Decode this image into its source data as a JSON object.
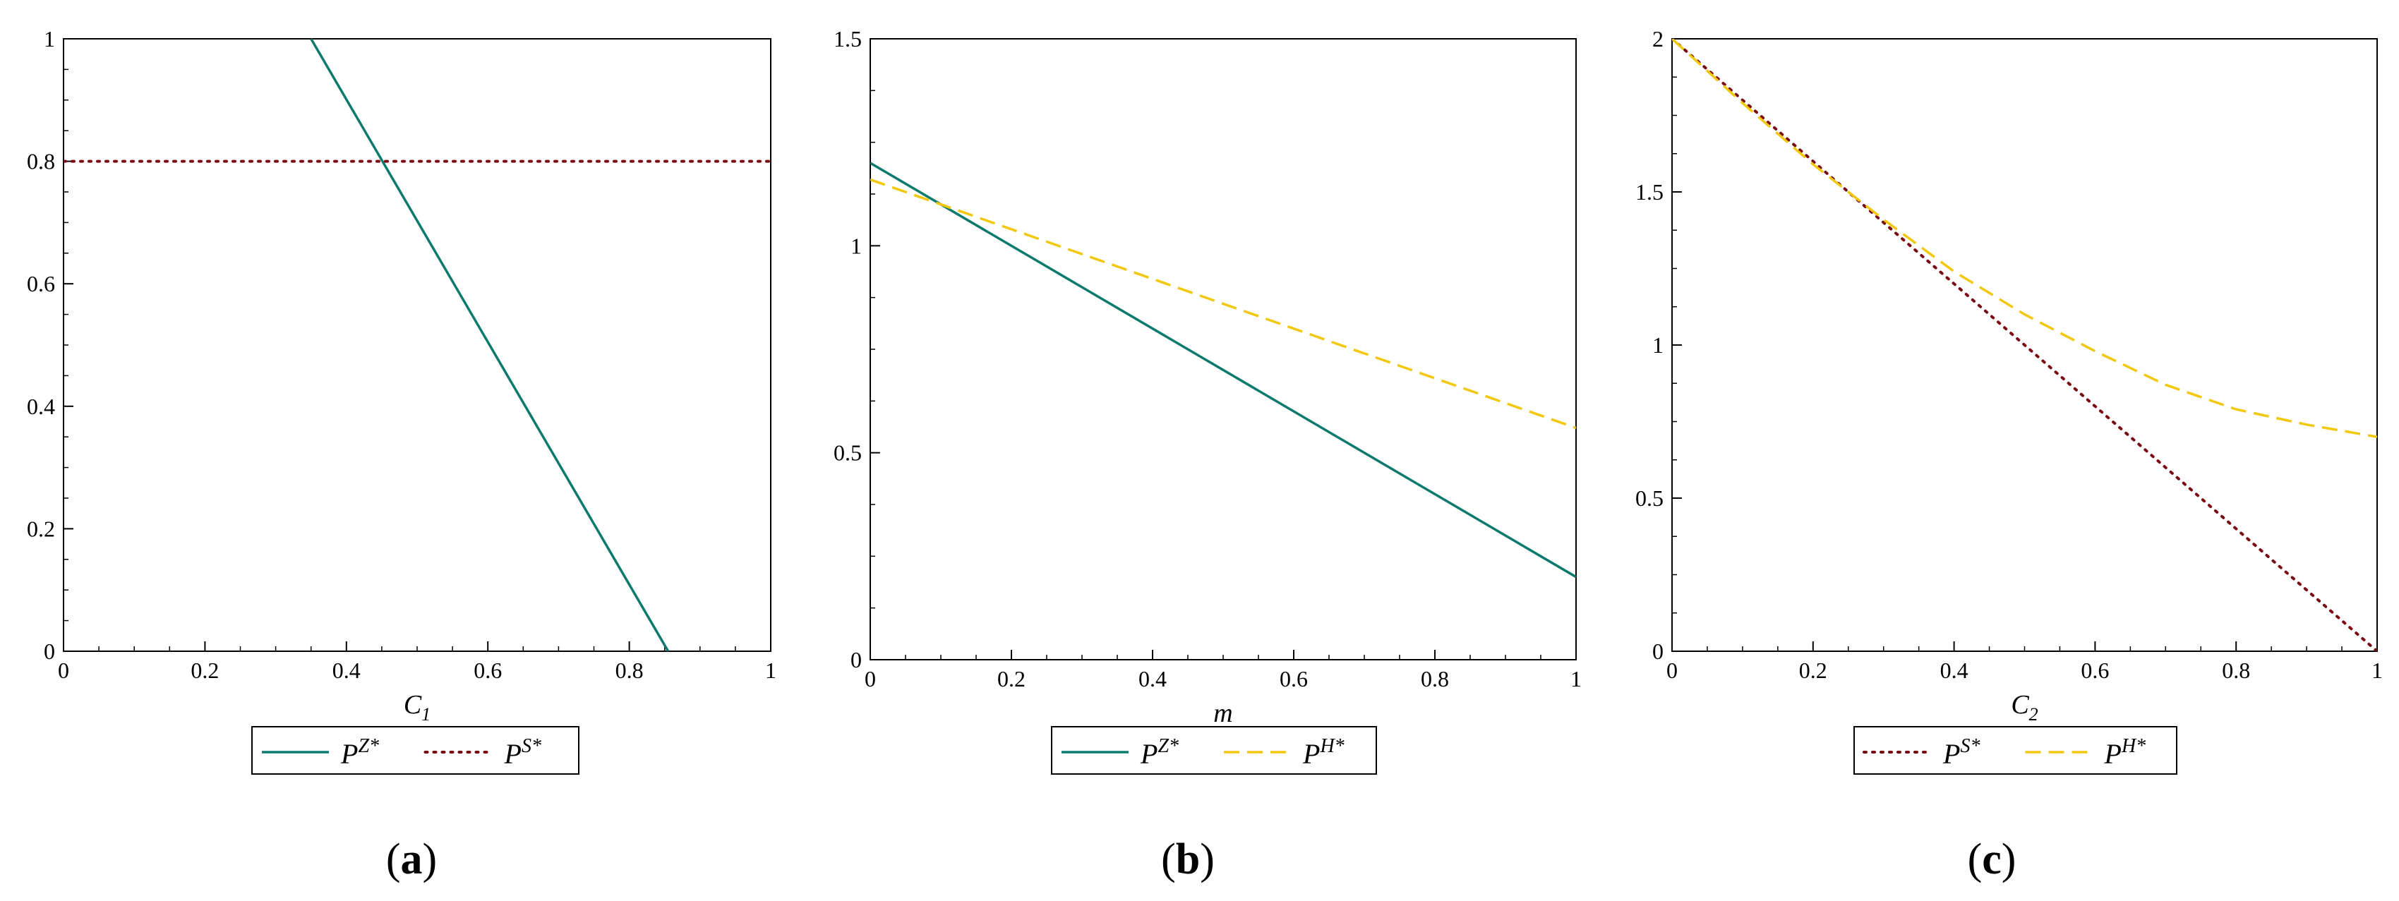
{
  "chart_data": [
    {
      "type": "line",
      "panel_label": "a",
      "xlabel": {
        "base": "C",
        "sub": "1"
      },
      "ylabel": "",
      "xlim": [
        0,
        1
      ],
      "ylim": [
        0,
        1
      ],
      "xticks": [
        "0",
        "0.2",
        "0.4",
        "0.6",
        "0.8",
        "1"
      ],
      "yticks": [
        "0",
        "0.2",
        "0.4",
        "0.6",
        "0.8",
        "1"
      ],
      "grid": false,
      "legend_position": "bottom-center",
      "series": [
        {
          "name": "P",
          "sup": "Z*",
          "style": "solid",
          "color": "#0c7a6d",
          "points": [
            [
              0.35,
              1.0
            ],
            [
              0.855,
              0.0
            ]
          ]
        },
        {
          "name": "P",
          "sup": "S*",
          "style": "dotted",
          "color": "#7a0a12",
          "points": [
            [
              0,
              0.8
            ],
            [
              1,
              0.8
            ]
          ]
        }
      ]
    },
    {
      "type": "line",
      "panel_label": "b",
      "xlabel": {
        "base": "m",
        "sub": ""
      },
      "ylabel": "",
      "xlim": [
        0,
        1
      ],
      "ylim": [
        0,
        1.5
      ],
      "xticks": [
        "0",
        "0.2",
        "0.4",
        "0.6",
        "0.8",
        "1"
      ],
      "yticks": [
        "0",
        "0.5",
        "1",
        "1.5"
      ],
      "grid": false,
      "legend_position": "bottom-center",
      "series": [
        {
          "name": "P",
          "sup": "Z*",
          "style": "solid",
          "color": "#0c7a6d",
          "points": [
            [
              0,
              1.2
            ],
            [
              1,
              0.2
            ]
          ]
        },
        {
          "name": "P",
          "sup": "H*",
          "style": "dashed",
          "color": "#f2c80f",
          "points": [
            [
              0,
              1.16
            ],
            [
              1,
              0.56
            ]
          ]
        }
      ]
    },
    {
      "type": "line",
      "panel_label": "c",
      "xlabel": {
        "base": "C",
        "sub": "2"
      },
      "ylabel": "",
      "xlim": [
        0,
        1
      ],
      "ylim": [
        0,
        2
      ],
      "xticks": [
        "0",
        "0.2",
        "0.4",
        "0.6",
        "0.8",
        "1"
      ],
      "yticks": [
        "0",
        "0.5",
        "1",
        "1.5",
        "2"
      ],
      "grid": false,
      "legend_position": "bottom-center",
      "series": [
        {
          "name": "P",
          "sup": "S*",
          "style": "dotted",
          "color": "#7a0a12",
          "points": [
            [
              0,
              2.0
            ],
            [
              0.1,
              1.8
            ],
            [
              0.2,
              1.6
            ],
            [
              0.3,
              1.4
            ],
            [
              0.4,
              1.2
            ],
            [
              0.5,
              1.0
            ],
            [
              0.6,
              0.8
            ],
            [
              0.7,
              0.6
            ],
            [
              0.8,
              0.4
            ],
            [
              0.9,
              0.2
            ],
            [
              1.0,
              0.0
            ]
          ]
        },
        {
          "name": "P",
          "sup": "H*",
          "style": "dashed",
          "color": "#f2c80f",
          "points": [
            [
              0,
              2.0
            ],
            [
              0.1,
              1.79
            ],
            [
              0.2,
              1.59
            ],
            [
              0.3,
              1.41
            ],
            [
              0.4,
              1.24
            ],
            [
              0.5,
              1.1
            ],
            [
              0.6,
              0.98
            ],
            [
              0.7,
              0.87
            ],
            [
              0.8,
              0.79
            ],
            [
              0.9,
              0.74
            ],
            [
              1.0,
              0.7
            ]
          ]
        }
      ]
    }
  ]
}
